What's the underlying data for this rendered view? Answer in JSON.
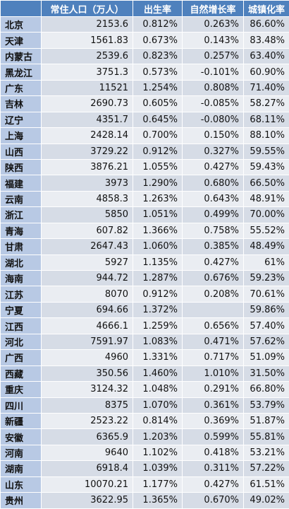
{
  "headers": [
    "",
    "常住人口（万人）",
    "出生率",
    "自然增长率",
    "城镇化率"
  ],
  "rows": [
    [
      "北京",
      "2153.6",
      "0.812%",
      "0.263%",
      "86.60%"
    ],
    [
      "天津",
      "1561.83",
      "0.673%",
      "0.143%",
      "83.48%"
    ],
    [
      "内蒙古",
      "2539.6",
      "0.823%",
      "0.257%",
      "63.40%"
    ],
    [
      "黑龙江",
      "3751.3",
      "0.573%",
      "-0.101%",
      "60.90%"
    ],
    [
      "广东",
      "11521",
      "1.254%",
      "0.808%",
      "71.40%"
    ],
    [
      "吉林",
      "2690.73",
      "0.605%",
      "-0.085%",
      "58.27%"
    ],
    [
      "辽宁",
      "4351.7",
      "0.645%",
      "-0.080%",
      "68.11%"
    ],
    [
      "上海",
      "2428.14",
      "0.700%",
      "0.150%",
      "88.10%"
    ],
    [
      "山西",
      "3729.22",
      "0.912%",
      "0.327%",
      "59.55%"
    ],
    [
      "陕西",
      "3876.21",
      "1.055%",
      "0.427%",
      "59.43%"
    ],
    [
      "福建",
      "3973",
      "1.290%",
      "0.680%",
      "66.50%"
    ],
    [
      "云南",
      "4858.3",
      "1.263%",
      "0.643%",
      "48.91%"
    ],
    [
      "浙江",
      "5850",
      "1.051%",
      "0.499%",
      "70.00%"
    ],
    [
      "青海",
      "607.82",
      "1.366%",
      "0.758%",
      "55.52%"
    ],
    [
      "甘肃",
      "2647.43",
      "1.060%",
      "0.385%",
      "48.49%"
    ],
    [
      "湖北",
      "5927",
      "1.135%",
      "0.427%",
      "61%"
    ],
    [
      "海南",
      "944.72",
      "1.287%",
      "0.676%",
      "59.23%"
    ],
    [
      "江苏",
      "8070",
      "0.912%",
      "0.208%",
      "70.61%"
    ],
    [
      "宁夏",
      "694.66",
      "1.372%",
      "",
      "59.86%"
    ],
    [
      "江西",
      "4666.1",
      "1.259%",
      "0.656%",
      "57.40%"
    ],
    [
      "河北",
      "7591.97",
      "1.083%",
      "0.471%",
      "57.62%"
    ],
    [
      "广西",
      "4960",
      "1.331%",
      "0.717%",
      "51.09%"
    ],
    [
      "西藏",
      "350.56",
      "1.460%",
      "1.010%",
      "31.50%"
    ],
    [
      "重庆",
      "3124.32",
      "1.048%",
      "0.291%",
      "66.80%"
    ],
    [
      "四川",
      "8375",
      "1.070%",
      "0.361%",
      "53.79%"
    ],
    [
      "新疆",
      "2523.22",
      "0.814%",
      "0.369%",
      "51.87%"
    ],
    [
      "安徽",
      "6365.9",
      "1.203%",
      "0.599%",
      "55.81%"
    ],
    [
      "河南",
      "9640",
      "1.102%",
      "0.418%",
      "53.21%"
    ],
    [
      "湖南",
      "6918.4",
      "1.039%",
      "0.311%",
      "57.22%"
    ],
    [
      "山东",
      "10070.21",
      "1.177%",
      "0.427%",
      "61.51%"
    ],
    [
      "贵州",
      "3622.95",
      "1.365%",
      "0.670%",
      "49.02%"
    ]
  ]
}
